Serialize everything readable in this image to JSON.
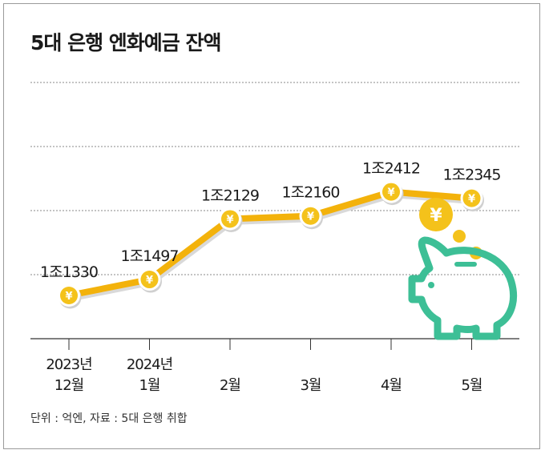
{
  "title": "5대 은행 엔화예금 잔액",
  "source": "단위 : 억엔, 자료 : 5대 은행 취합",
  "colors": {
    "line": "#f3b20b",
    "coin": "#f4c21b",
    "pig": "#3dbf96",
    "grid": "#888888"
  },
  "icons": {
    "point": "yen-coin-icon",
    "pig": "piggy-bank-icon",
    "coin": "yen-coin-icon"
  },
  "piggy_coin_symbol": "¥",
  "chart_data": {
    "type": "line",
    "categories": [
      "2023년\n12월",
      "2024년\n1월",
      "2월",
      "3월",
      "4월",
      "5월"
    ],
    "series": [
      {
        "values": [
          1330,
          1497,
          2129,
          2160,
          2412,
          2345
        ]
      }
    ],
    "labels": [
      "1조1330",
      "1조1497",
      "1조2129",
      "1조2160",
      "1조2412",
      "1조2345"
    ],
    "grid": true,
    "point_symbol": "¥"
  }
}
